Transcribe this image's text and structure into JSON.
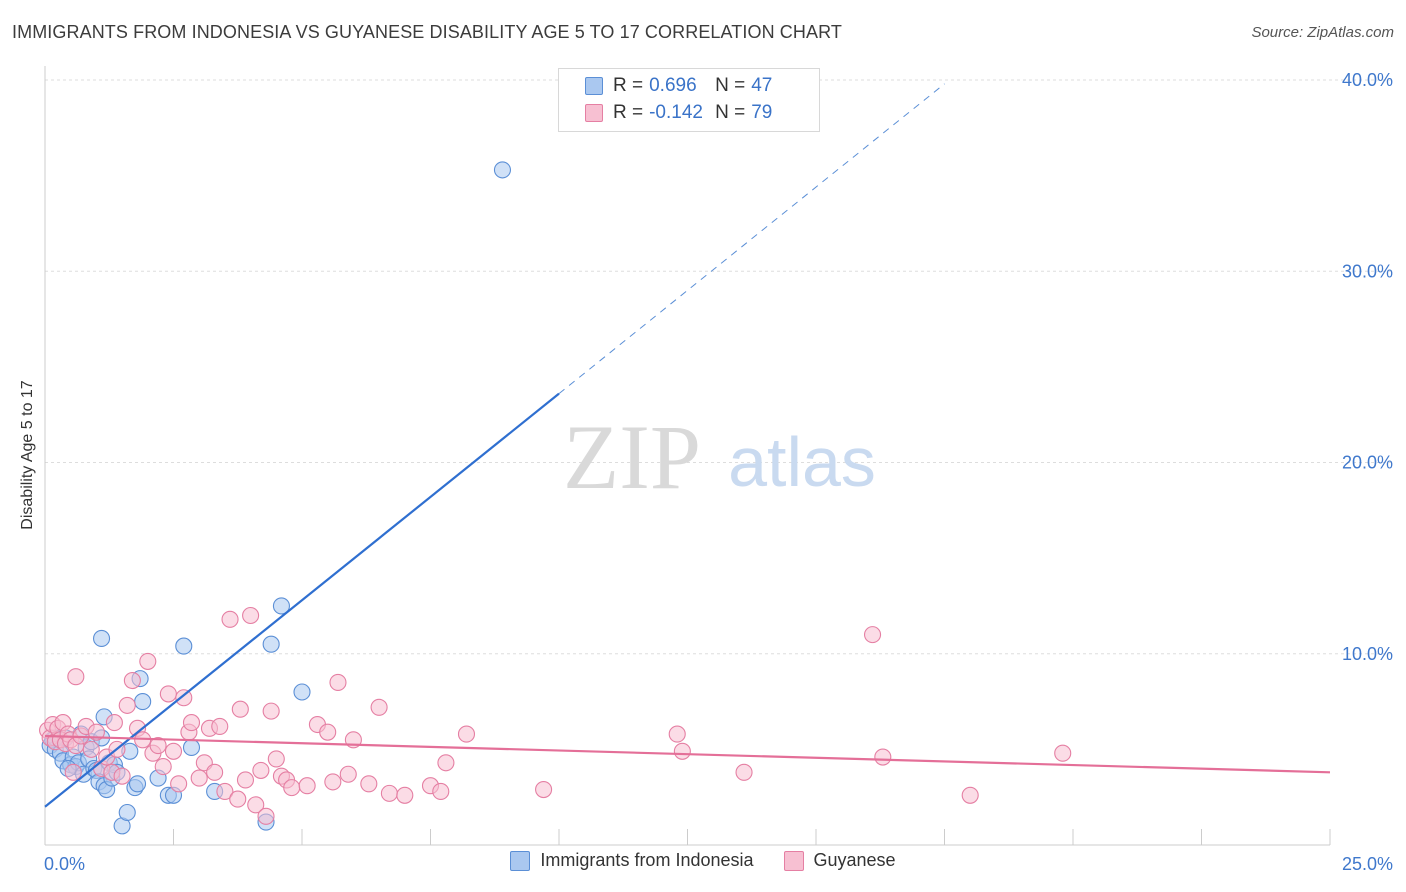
{
  "title": "IMMIGRANTS FROM INDONESIA VS GUYANESE DISABILITY AGE 5 TO 17 CORRELATION CHART",
  "source": "Source: ZipAtlas.com",
  "watermark": {
    "zip": "ZIP",
    "atlas": "atlas"
  },
  "legend": {
    "rows": [
      {
        "r_label": "R =",
        "r_value": "0.696",
        "n_label": "N =",
        "n_value": "47"
      },
      {
        "r_label": "R =",
        "r_value": "-0.142",
        "n_label": "N =",
        "n_value": "79"
      }
    ]
  },
  "colors": {
    "blue_fill": "#aac8f0",
    "blue_stroke": "#5b8fd6",
    "blue_line": "#2f6fd0",
    "pink_fill": "#f7c0d2",
    "pink_stroke": "#e57fa3",
    "pink_line": "#e46f98",
    "tick_label": "#3f78cc",
    "grid": "#dddddd"
  },
  "chart_data": {
    "type": "scatter",
    "title": "IMMIGRANTS FROM INDONESIA VS GUYANESE DISABILITY AGE 5 TO 17 CORRELATION CHART",
    "xlabel": "",
    "ylabel": "Disability Age 5 to 17",
    "xlim": [
      0,
      25
    ],
    "ylim": [
      0,
      40
    ],
    "x_tick_labels": [
      {
        "value": 0,
        "label": "0.0%"
      },
      {
        "value": 25,
        "label": "25.0%"
      }
    ],
    "y_tick_labels": [
      {
        "value": 10,
        "label": "10.0%"
      },
      {
        "value": 20,
        "label": "20.0%"
      },
      {
        "value": 30,
        "label": "30.0%"
      },
      {
        "value": 40,
        "label": "40.0%"
      }
    ],
    "series": [
      {
        "name": "Immigrants from Indonesia",
        "color": "blue",
        "r": 0.696,
        "n": 47,
        "trend": {
          "x_start": 0,
          "y_start": 2.0,
          "x_solid_end": 10.0,
          "y_solid_end": 23.6,
          "x_end": 17.5,
          "y_end": 39.8
        },
        "points": [
          [
            0.1,
            5.2
          ],
          [
            0.15,
            5.5
          ],
          [
            0.2,
            5.0
          ],
          [
            0.3,
            4.8
          ],
          [
            0.35,
            4.4
          ],
          [
            0.4,
            5.6
          ],
          [
            0.5,
            4.2
          ],
          [
            0.55,
            4.6
          ],
          [
            0.6,
            4.1
          ],
          [
            0.65,
            4.3
          ],
          [
            0.7,
            5.8
          ],
          [
            0.75,
            3.7
          ],
          [
            0.8,
            5.1
          ],
          [
            0.85,
            4.5
          ],
          [
            0.9,
            5.4
          ],
          [
            0.95,
            4.0
          ],
          [
            1.0,
            3.9
          ],
          [
            1.05,
            3.3
          ],
          [
            1.1,
            5.6
          ],
          [
            1.15,
            3.1
          ],
          [
            1.2,
            2.9
          ],
          [
            1.25,
            4.3
          ],
          [
            1.3,
            3.5
          ],
          [
            1.35,
            4.2
          ],
          [
            1.4,
            3.8
          ],
          [
            1.5,
            1.0
          ],
          [
            1.6,
            1.7
          ],
          [
            1.65,
            4.9
          ],
          [
            1.75,
            3.0
          ],
          [
            1.85,
            8.7
          ],
          [
            1.9,
            7.5
          ],
          [
            2.2,
            3.5
          ],
          [
            2.4,
            2.6
          ],
          [
            1.1,
            10.8
          ],
          [
            2.7,
            10.4
          ],
          [
            2.85,
            5.1
          ],
          [
            3.3,
            2.8
          ],
          [
            4.3,
            1.2
          ],
          [
            4.4,
            10.5
          ],
          [
            4.6,
            12.5
          ],
          [
            5.0,
            8.0
          ],
          [
            8.9,
            35.3
          ],
          [
            0.2,
            5.6
          ],
          [
            0.45,
            4.0
          ],
          [
            1.15,
            6.7
          ],
          [
            1.8,
            3.2
          ],
          [
            2.5,
            2.6
          ]
        ]
      },
      {
        "name": "Guyanese",
        "color": "pink",
        "r": -0.142,
        "n": 79,
        "trend": {
          "x_start": 0,
          "y_start": 5.7,
          "x_end": 25.0,
          "y_end": 3.8
        },
        "points": [
          [
            0.05,
            6.0
          ],
          [
            0.1,
            5.6
          ],
          [
            0.15,
            6.3
          ],
          [
            0.2,
            5.4
          ],
          [
            0.25,
            6.1
          ],
          [
            0.3,
            5.5
          ],
          [
            0.35,
            6.4
          ],
          [
            0.4,
            5.3
          ],
          [
            0.45,
            5.8
          ],
          [
            0.5,
            5.5
          ],
          [
            0.6,
            5.2
          ],
          [
            0.7,
            5.7
          ],
          [
            0.8,
            6.2
          ],
          [
            0.9,
            5.0
          ],
          [
            1.0,
            5.9
          ],
          [
            1.1,
            4.0
          ],
          [
            1.2,
            4.6
          ],
          [
            1.3,
            3.8
          ],
          [
            1.35,
            6.4
          ],
          [
            1.4,
            5.0
          ],
          [
            1.5,
            3.6
          ],
          [
            1.6,
            7.3
          ],
          [
            1.7,
            8.6
          ],
          [
            1.8,
            6.1
          ],
          [
            1.9,
            5.5
          ],
          [
            2.0,
            9.6
          ],
          [
            2.1,
            4.8
          ],
          [
            2.2,
            5.2
          ],
          [
            2.3,
            4.1
          ],
          [
            2.4,
            7.9
          ],
          [
            2.5,
            4.9
          ],
          [
            2.6,
            3.2
          ],
          [
            2.7,
            7.7
          ],
          [
            2.8,
            5.9
          ],
          [
            3.0,
            3.5
          ],
          [
            3.1,
            4.3
          ],
          [
            3.2,
            6.1
          ],
          [
            3.3,
            3.8
          ],
          [
            3.4,
            6.2
          ],
          [
            3.5,
            2.8
          ],
          [
            3.6,
            11.8
          ],
          [
            3.8,
            7.1
          ],
          [
            3.9,
            3.4
          ],
          [
            4.0,
            12.0
          ],
          [
            4.1,
            2.1
          ],
          [
            4.2,
            3.9
          ],
          [
            4.3,
            1.5
          ],
          [
            4.4,
            7.0
          ],
          [
            4.5,
            4.5
          ],
          [
            4.6,
            3.6
          ],
          [
            4.7,
            3.4
          ],
          [
            4.8,
            3.0
          ],
          [
            5.1,
            3.1
          ],
          [
            5.3,
            6.3
          ],
          [
            5.5,
            5.9
          ],
          [
            5.6,
            3.3
          ],
          [
            5.7,
            8.5
          ],
          [
            5.9,
            3.7
          ],
          [
            6.0,
            5.5
          ],
          [
            6.3,
            3.2
          ],
          [
            6.5,
            7.2
          ],
          [
            6.7,
            2.7
          ],
          [
            7.0,
            2.6
          ],
          [
            7.5,
            3.1
          ],
          [
            7.7,
            2.8
          ],
          [
            7.8,
            4.3
          ],
          [
            8.2,
            5.8
          ],
          [
            9.7,
            2.9
          ],
          [
            12.3,
            5.8
          ],
          [
            12.4,
            4.9
          ],
          [
            13.6,
            3.8
          ],
          [
            16.1,
            11.0
          ],
          [
            16.3,
            4.6
          ],
          [
            18.0,
            2.6
          ],
          [
            19.8,
            4.8
          ],
          [
            0.6,
            8.8
          ],
          [
            0.55,
            3.8
          ],
          [
            2.85,
            6.4
          ],
          [
            3.75,
            2.4
          ]
        ]
      }
    ]
  },
  "bottom_legend": [
    {
      "label": "Immigrants from Indonesia",
      "color": "blue"
    },
    {
      "label": "Guyanese",
      "color": "pink"
    }
  ]
}
